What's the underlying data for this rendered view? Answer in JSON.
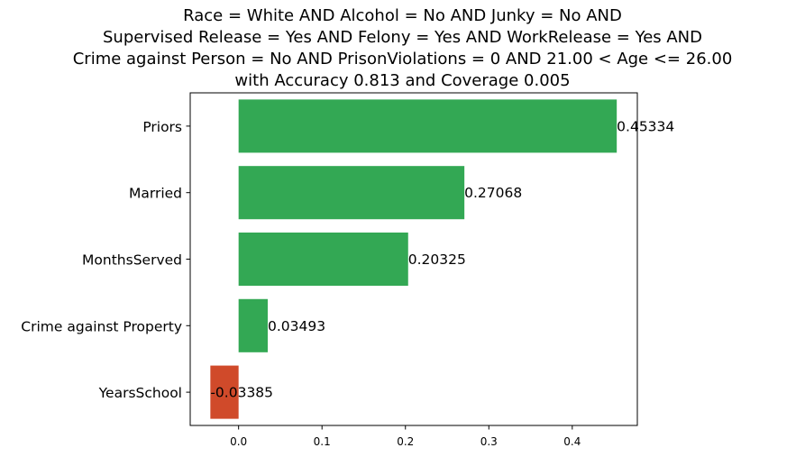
{
  "chart_data": {
    "type": "bar",
    "orientation": "horizontal",
    "title_lines": [
      "Race = White AND Alcohol = No AND Junky = No AND",
      "Supervised Release = Yes AND Felony = Yes AND WorkRelease = Yes AND",
      "Crime against Person = No AND PrisonViolations = 0 AND 21.00 < Age <= 26.00",
      "with Accuracy 0.813 and Coverage 0.005"
    ],
    "categories": [
      "Priors",
      "Married",
      "MonthsServed",
      "Crime against Property",
      "YearsSchool"
    ],
    "values": [
      0.45334,
      0.27068,
      0.20325,
      0.03493,
      -0.03385
    ],
    "value_labels": [
      "0.45334",
      "0.27068",
      "0.20325",
      "0.03493",
      "-0.03385"
    ],
    "xlim": [
      -0.058,
      0.478
    ],
    "xticks": [
      0.0,
      0.1,
      0.2,
      0.3,
      0.4
    ],
    "xtick_labels": [
      "0.0",
      "0.1",
      "0.2",
      "0.3",
      "0.4"
    ],
    "xlabel": "",
    "ylabel": "",
    "grid": false,
    "colors": {
      "positive": "#33a854",
      "negative": "#d04a2a"
    }
  }
}
